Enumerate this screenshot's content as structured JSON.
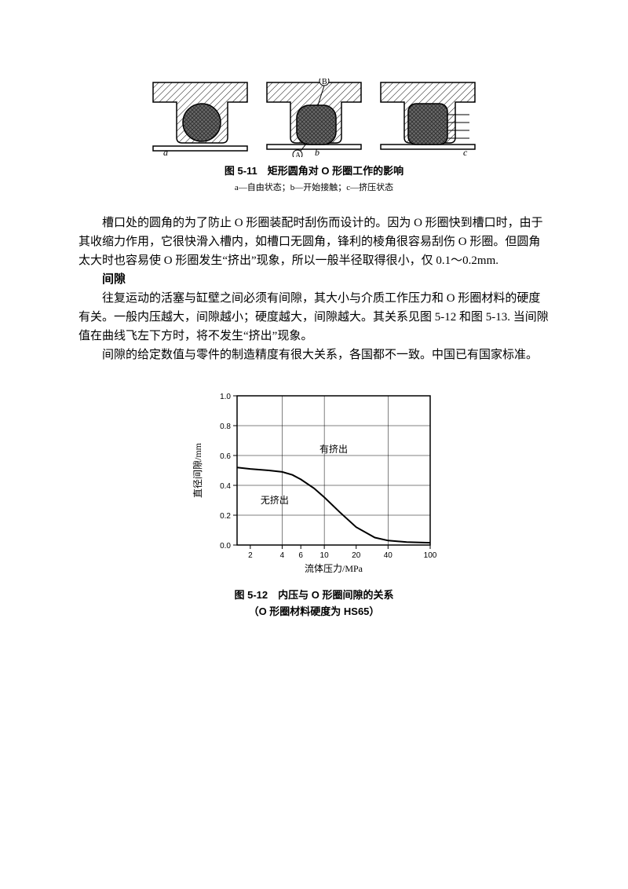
{
  "figure_top": {
    "caption": "图 5-11　矩形圆角对 O 形圈工作的影响",
    "subcaption": "a—自由状态；b—开始接触；c—挤压状态",
    "labels": {
      "a": "a",
      "b": "b",
      "c": "c",
      "B": "B",
      "A": "A"
    },
    "colors": {
      "stroke": "#000000",
      "hatch": "#000000",
      "oring_fill": "#6a6a6a",
      "oring_crosshatch": "#2d2d2d",
      "bg": "#ffffff"
    }
  },
  "paragraphs": {
    "p1": "槽口处的圆角的为了防止 O 形圈装配时刮伤而设计的。因为 O 形圈快到槽口时，由于其收缩力作用，它很快滑入槽内，如槽口无圆角，锋利的棱角很容易刮伤 O 形圈。但圆角太大时也容易使 O 形圈发生“挤出”现象，所以一般半径取得很小，仅 0.1～0.2mm.",
    "h1": "间隙",
    "p2": "往复运动的活塞与缸壁之间必须有间隙，其大小与介质工作压力和 O 形圈材料的硬度有关。一般内压越大，间隙越小；硬度越大，间隙越大。其关系见图 5-12 和图 5-13. 当间隙值在曲线飞左下方时，将不发生“挤出”现象。",
    "p3": "间隙的给定数值与零件的制造精度有很大关系，各国都不一致。中国已有国家标准。"
  },
  "chart": {
    "type": "line",
    "xlabel": "流体压力/MPa",
    "ylabel": "直径间隙/mm",
    "x_scale": "log",
    "x_ticks": [
      2,
      4,
      6,
      10,
      20,
      40,
      100
    ],
    "y_ticks": [
      0,
      0.2,
      0.4,
      0.6,
      0.8,
      1.0
    ],
    "xlim": [
      1.5,
      100
    ],
    "ylim": [
      0,
      1.0
    ],
    "curve": [
      [
        1.5,
        0.52
      ],
      [
        2,
        0.51
      ],
      [
        3,
        0.5
      ],
      [
        4,
        0.49
      ],
      [
        5,
        0.47
      ],
      [
        6,
        0.44
      ],
      [
        8,
        0.38
      ],
      [
        10,
        0.32
      ],
      [
        14,
        0.22
      ],
      [
        20,
        0.12
      ],
      [
        30,
        0.05
      ],
      [
        40,
        0.03
      ],
      [
        60,
        0.02
      ],
      [
        100,
        0.015
      ]
    ],
    "region_labels": {
      "above": "有挤出",
      "below": "无挤出"
    },
    "colors": {
      "axis": "#000000",
      "grid": "#000000",
      "curve": "#000000",
      "text": "#000000",
      "bg": "#ffffff"
    },
    "line_width": 2,
    "tick_fontsize": 10,
    "label_fontsize": 12,
    "caption": "图 5-12　内压与 O 形圈间隙的关系",
    "subcaption": "（O 形圈材料硬度为 HS65）"
  }
}
